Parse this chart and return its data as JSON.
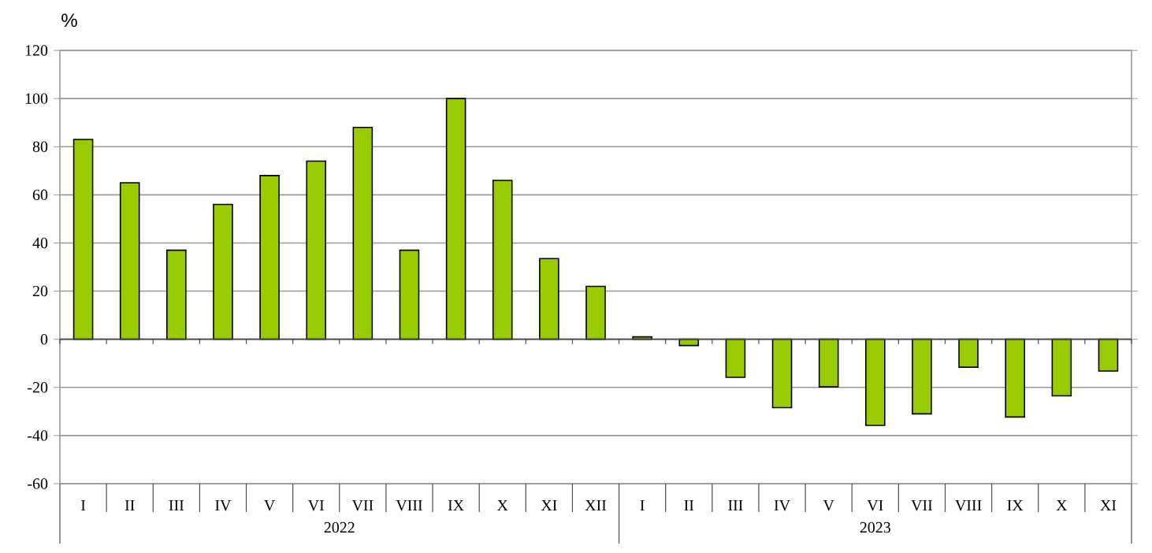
{
  "chart_data": {
    "type": "bar",
    "ylabel": "%",
    "categories": [
      "I",
      "II",
      "III",
      "IV",
      "V",
      "VI",
      "VII",
      "VIII",
      "IX",
      "X",
      "XI",
      "XII",
      "I",
      "II",
      "III",
      "IV",
      "V",
      "VI",
      "VII",
      "VIII",
      "IX",
      "X",
      "XI"
    ],
    "values": [
      83,
      65,
      37,
      56,
      68,
      74,
      88,
      37,
      100,
      66,
      33.5,
      22,
      1,
      -2.6,
      -15.8,
      -28.4,
      -19.8,
      -35.8,
      -31,
      -11.6,
      -32.3,
      -23.5,
      -13.2
    ],
    "color": "#99cc00",
    "ylim": [
      -60,
      120
    ],
    "yticks": [
      -60,
      -40,
      -20,
      0,
      20,
      40,
      60,
      80,
      100,
      120
    ],
    "grid": "y",
    "annotations": [
      "2022",
      "2023"
    ]
  }
}
